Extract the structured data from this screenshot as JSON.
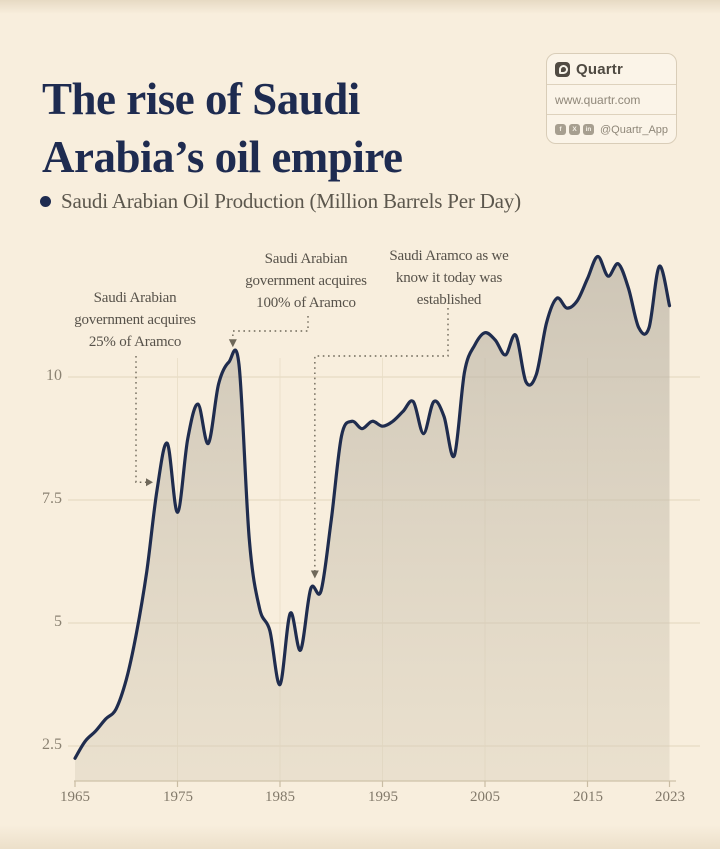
{
  "header": {
    "title": "The rise of Saudi\nArabia’s oil empire",
    "title_color": "#1e2b50"
  },
  "brand_card": {
    "name": "Quartr",
    "website": "www.quartr.com",
    "handle": "@Quartr_App",
    "social_icons": [
      "facebook-icon",
      "x-icon",
      "linkedin-icon"
    ],
    "social_glyphs": [
      "f",
      "X",
      "in"
    ]
  },
  "legend": {
    "label": "Saudi Arabian Oil Production (Million Barrels Per Day)",
    "marker_color": "#1e2b50"
  },
  "chart_data": {
    "type": "area",
    "title": "Saudi Arabian Oil Production (Million Barrels Per Day)",
    "xlabel": "",
    "ylabel": "Million Barrels Per Day",
    "x": [
      1965,
      1966,
      1967,
      1968,
      1969,
      1970,
      1971,
      1972,
      1973,
      1974,
      1975,
      1976,
      1977,
      1978,
      1979,
      1980,
      1981,
      1982,
      1983,
      1984,
      1985,
      1986,
      1987,
      1988,
      1989,
      1990,
      1991,
      1992,
      1993,
      1994,
      1995,
      1996,
      1997,
      1998,
      1999,
      2000,
      2001,
      2002,
      2003,
      2004,
      2005,
      2006,
      2007,
      2008,
      2009,
      2010,
      2011,
      2012,
      2013,
      2014,
      2015,
      2016,
      2017,
      2018,
      2019,
      2020,
      2021,
      2022,
      2023
    ],
    "series": [
      {
        "name": "Saudi Arabian Oil Production",
        "values": [
          2.25,
          2.6,
          2.8,
          3.05,
          3.25,
          3.85,
          4.8,
          6.05,
          7.7,
          8.65,
          7.25,
          8.75,
          9.45,
          8.65,
          9.85,
          10.3,
          10.25,
          6.7,
          5.3,
          4.85,
          3.75,
          5.2,
          4.45,
          5.7,
          5.65,
          7.1,
          8.8,
          9.1,
          8.95,
          9.1,
          9.0,
          9.1,
          9.3,
          9.5,
          8.85,
          9.5,
          9.2,
          8.4,
          10.1,
          10.65,
          10.9,
          10.75,
          10.45,
          10.85,
          9.9,
          10.05,
          11.1,
          11.6,
          11.4,
          11.55,
          12.0,
          12.45,
          12.05,
          12.3,
          11.8,
          11.0,
          11.0,
          12.25,
          11.45
        ]
      }
    ],
    "xticks": [
      1965,
      1975,
      1985,
      1995,
      2005,
      2015,
      2023
    ],
    "yticks": [
      2.5,
      5,
      7.5,
      10
    ],
    "xlim": [
      1965,
      2023
    ],
    "ylim": [
      2.0,
      12.7
    ],
    "grid": true,
    "legend_position": "top-left",
    "line_color": "#1f2c4e",
    "fill_color": "#cfc9ba",
    "grid_color": "#e2d5bd",
    "annotations": [
      {
        "text": "Saudi Arabian\ngovernment acquires\n25% of Aramco",
        "target_year": 1973,
        "target_value": 7.8
      },
      {
        "text": "Saudi Arabian\ngovernment acquires\n100% of Aramco",
        "target_year": 1980,
        "target_value": 10.3
      },
      {
        "text": "Saudi Aramco as we\nknow it today was\nestablished",
        "target_year": 1988,
        "target_value": 5.7
      }
    ]
  }
}
